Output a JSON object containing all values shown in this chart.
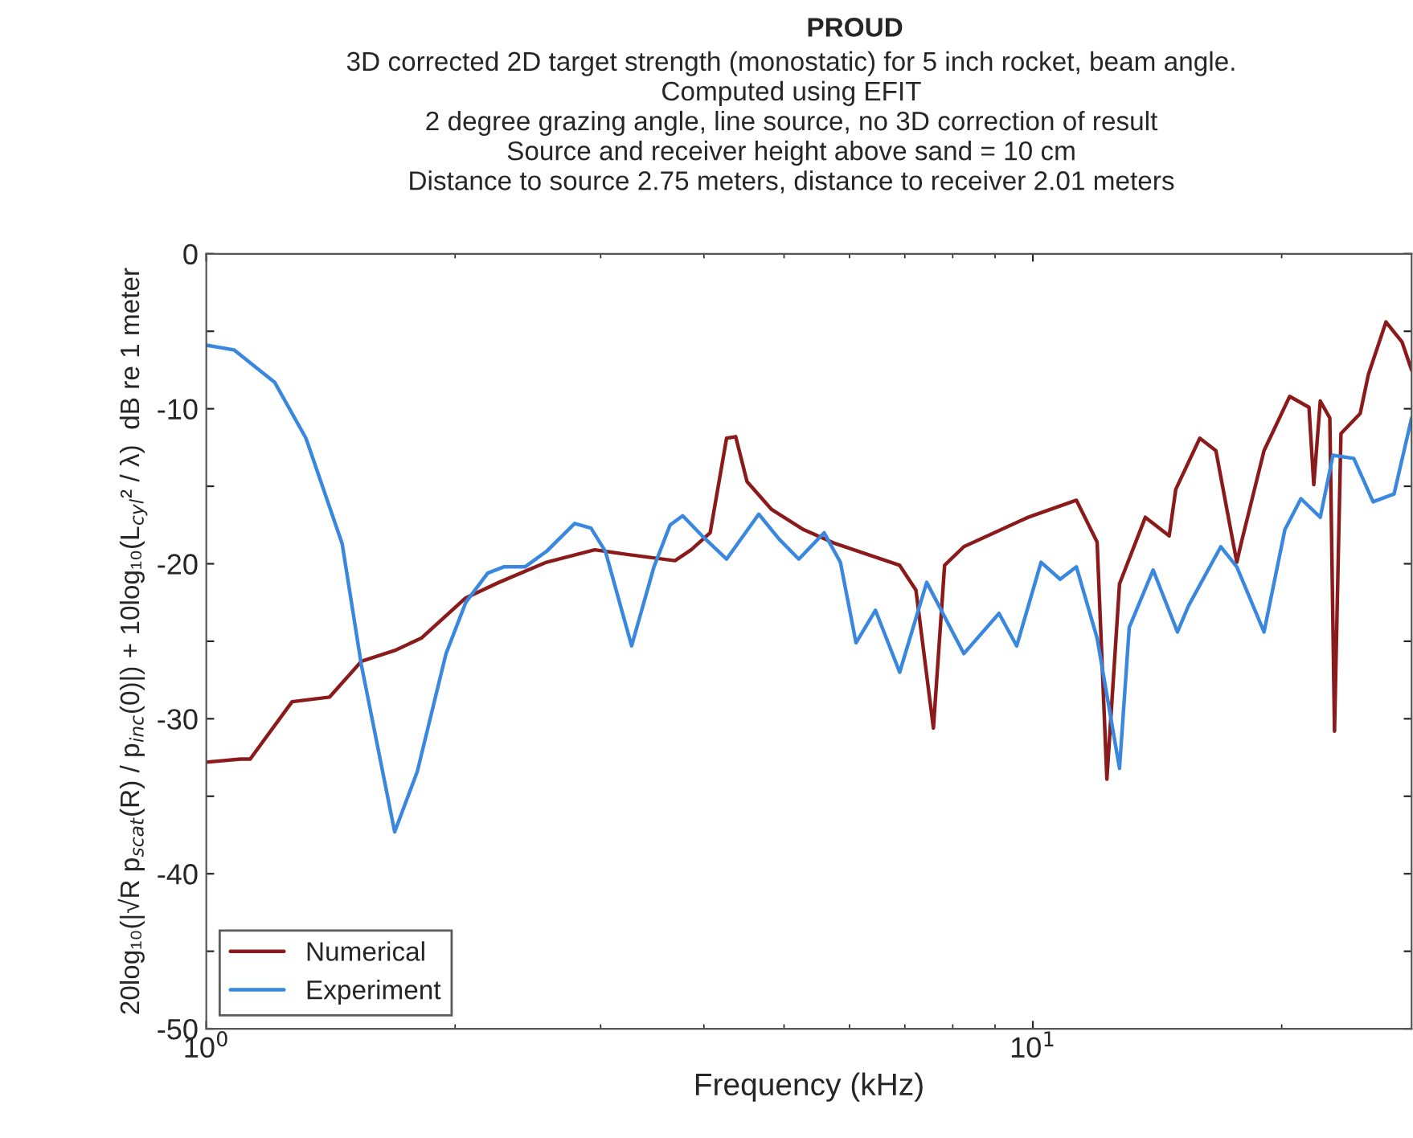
{
  "chart_data": {
    "type": "line",
    "title": "PROUD",
    "subtitle": "3D corrected 2D target strength (monostatic) for 5 inch rocket, beam angle.\nComputed using EFIT\n2 degree grazing angle, line source, no 3D correction of result\nSource and receiver height above sand = 10 cm\nDistance to source 2.75 meters, distance to receiver 2.01 meters",
    "xlabel": "Frequency (kHz)",
    "ylabel": "20log₁₀(|√R p$_{scat}$(R) / p$_{inc}$(0)|) + 10log₁₀(L$_{cyl}$² / λ)  dB re 1 meter",
    "log": "x",
    "xlim": [
      1,
      28.72
    ],
    "xticks": [
      {
        "value": 1,
        "label": "10$^{0}$"
      },
      {
        "value": 10,
        "label": "10$^{1}$"
      }
    ],
    "ylim": [
      -50,
      0
    ],
    "yticks": [
      -50,
      {
        "value": -45,
        "label": null
      },
      -40,
      {
        "value": -35,
        "label": null
      },
      -30,
      {
        "value": -25,
        "label": null
      },
      -20,
      {
        "value": -15,
        "label": null
      },
      -10,
      {
        "value": -5,
        "label": null
      },
      0
    ],
    "grid": false,
    "legend": "bottom left",
    "marker": "none",
    "line_style": "solid",
    "series": [
      {
        "name": "Numerical",
        "color": "#8b1a1a",
        "x": [
          1.0,
          1.1,
          1.13,
          1.27,
          1.41,
          1.54,
          1.69,
          1.82,
          2.06,
          2.26,
          2.58,
          2.95,
          3.23,
          3.69,
          3.86,
          4.07,
          4.26,
          4.37,
          4.51,
          4.83,
          5.28,
          5.77,
          6.9,
          7.22,
          7.58,
          7.82,
          8.25,
          9.87,
          11.29,
          11.96,
          12.29,
          12.73,
          13.68,
          14.62,
          14.89,
          15.92,
          16.65,
          17.65,
          17.88,
          19.04,
          20.45,
          21.58,
          21.87,
          22.27,
          22.87,
          23.17,
          23.59,
          24.89,
          25.46,
          26.74,
          27.97,
          28.72
        ],
        "values": [
          -32.8,
          -32.6,
          -32.6,
          -28.9,
          -28.6,
          -26.3,
          -25.6,
          -24.8,
          -22.2,
          -21.2,
          -19.9,
          -19.1,
          -19.4,
          -19.8,
          -19.1,
          -18.0,
          -11.9,
          -11.8,
          -14.7,
          -16.5,
          -17.8,
          -18.7,
          -20.1,
          -21.7,
          -30.6,
          -20.1,
          -18.9,
          -17.0,
          -15.9,
          -18.6,
          -33.9,
          -21.3,
          -17.0,
          -18.2,
          -15.2,
          -11.9,
          -12.7,
          -19.9,
          -18.6,
          -12.7,
          -9.2,
          -9.9,
          -14.9,
          -9.5,
          -10.6,
          -30.8,
          -11.6,
          -10.3,
          -7.8,
          -4.4,
          -5.7,
          -7.5
        ]
      },
      {
        "name": "Experiment",
        "color": "#3a87e0",
        "x": [
          1.0,
          1.08,
          1.21,
          1.32,
          1.46,
          1.54,
          1.69,
          1.8,
          1.95,
          2.06,
          2.19,
          2.29,
          2.43,
          2.58,
          2.79,
          2.92,
          3.04,
          3.27,
          3.48,
          3.64,
          3.77,
          3.98,
          4.26,
          4.66,
          4.93,
          5.21,
          5.59,
          5.85,
          6.11,
          6.45,
          6.9,
          7.44,
          8.25,
          9.1,
          9.56,
          10.23,
          10.79,
          11.29,
          11.96,
          12.73,
          13.08,
          13.98,
          14.96,
          15.43,
          16.88,
          17.65,
          19.04,
          20.18,
          21.1,
          22.27,
          23.07,
          24.45,
          25.8,
          27.35,
          28.72
        ],
        "values": [
          -5.9,
          -6.2,
          -8.3,
          -11.9,
          -18.7,
          -26.5,
          -37.3,
          -33.4,
          -25.8,
          -22.5,
          -20.6,
          -20.2,
          -20.2,
          -19.2,
          -17.4,
          -17.7,
          -19.2,
          -25.3,
          -20.2,
          -17.5,
          -16.9,
          -18.2,
          -19.7,
          -16.8,
          -18.4,
          -19.7,
          -18.0,
          -19.9,
          -25.1,
          -23.0,
          -27.0,
          -21.2,
          -25.8,
          -23.2,
          -25.3,
          -19.9,
          -21.0,
          -20.2,
          -24.8,
          -33.2,
          -24.1,
          -20.4,
          -24.4,
          -22.7,
          -18.9,
          -20.2,
          -24.4,
          -17.8,
          -15.8,
          -17.0,
          -13.0,
          -13.2,
          -16.0,
          -15.5,
          -10.6
        ]
      }
    ]
  }
}
